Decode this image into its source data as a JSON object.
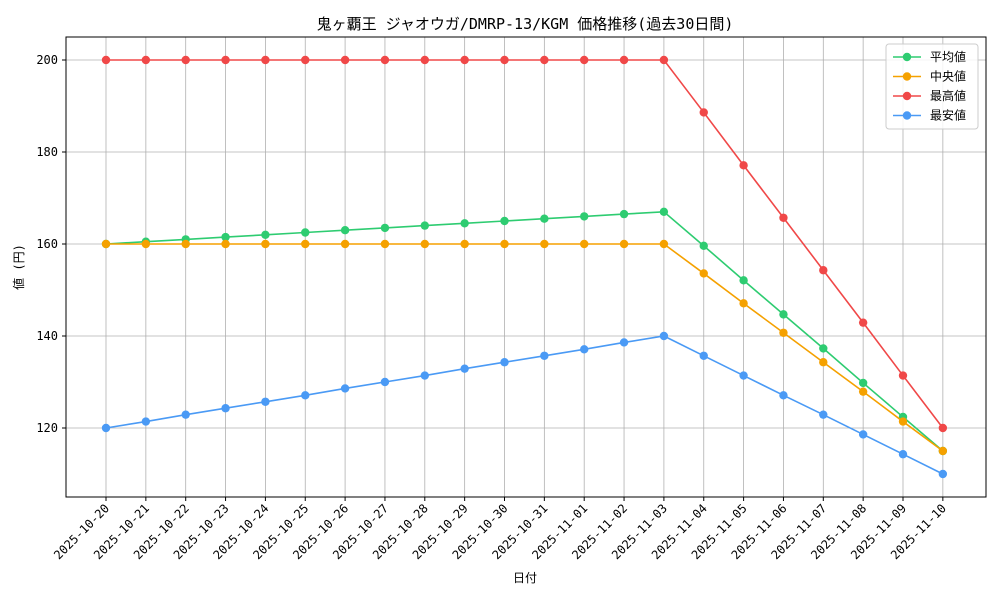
{
  "chart_data": {
    "type": "line",
    "title": "鬼ヶ覇王 ジャオウガ/DMRP-13/KGM 価格推移(過去30日間)",
    "xlabel": "日付",
    "ylabel": "値 (円)",
    "ylim": [
      105,
      205
    ],
    "yticks": [
      120,
      140,
      160,
      180,
      200
    ],
    "grid": true,
    "legend_position": "top-right",
    "categories": [
      "2025-10-20",
      "2025-10-21",
      "2025-10-22",
      "2025-10-23",
      "2025-10-24",
      "2025-10-25",
      "2025-10-26",
      "2025-10-27",
      "2025-10-28",
      "2025-10-29",
      "2025-10-30",
      "2025-10-31",
      "2025-11-01",
      "2025-11-02",
      "2025-11-03",
      "2025-11-04",
      "2025-11-05",
      "2025-11-06",
      "2025-11-07",
      "2025-11-08",
      "2025-11-09",
      "2025-11-10"
    ],
    "series": [
      {
        "name": "平均値",
        "color": "#2ecc71",
        "values": [
          160.0,
          160.5,
          161.0,
          161.5,
          162.0,
          162.5,
          163.0,
          163.5,
          164.0,
          164.5,
          165.0,
          165.5,
          166.0,
          166.5,
          167.0,
          159.6,
          152.1,
          144.7,
          137.3,
          129.8,
          122.4,
          115.0
        ]
      },
      {
        "name": "中央値",
        "color": "#f5a100",
        "values": [
          160,
          160,
          160,
          160,
          160,
          160,
          160,
          160,
          160,
          160,
          160,
          160,
          160,
          160,
          160,
          153.6,
          147.1,
          140.7,
          134.3,
          127.9,
          121.4,
          115.0
        ]
      },
      {
        "name": "最高値",
        "color": "#f04848",
        "values": [
          200,
          200,
          200,
          200,
          200,
          200,
          200,
          200,
          200,
          200,
          200,
          200,
          200,
          200,
          200,
          188.6,
          177.1,
          165.7,
          154.3,
          142.9,
          131.4,
          120.0
        ]
      },
      {
        "name": "最安値",
        "color": "#4a9af5",
        "values": [
          120.0,
          121.4,
          122.9,
          124.3,
          125.7,
          127.1,
          128.6,
          130.0,
          131.4,
          132.9,
          134.3,
          135.7,
          137.1,
          138.6,
          140.0,
          135.7,
          131.4,
          127.1,
          122.9,
          118.6,
          114.3,
          110.0
        ]
      }
    ]
  }
}
